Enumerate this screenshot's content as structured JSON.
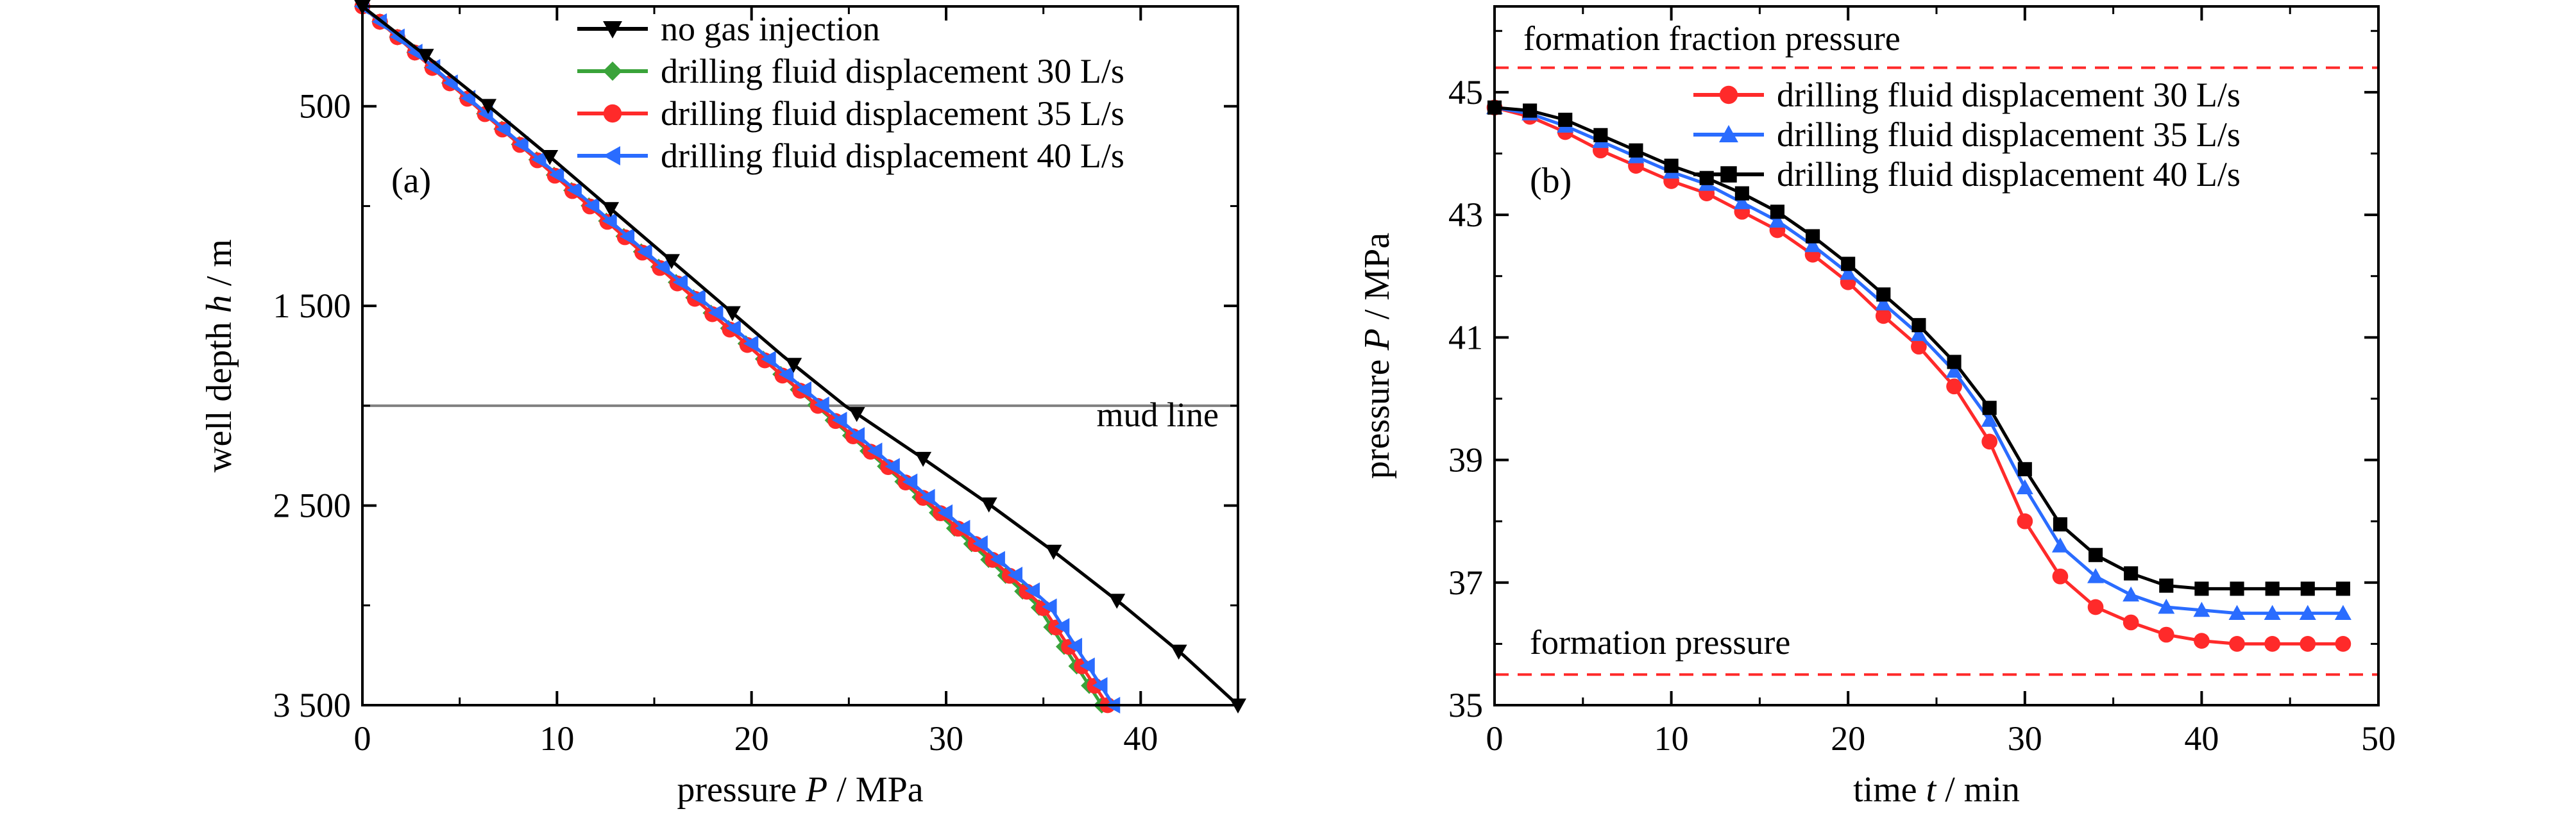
{
  "chart_data": [
    {
      "panel_label": "(a)",
      "type": "line",
      "x_axis": {
        "label_prefix": "pressure ",
        "label_var": "P",
        "label_unit": " / MPa",
        "range": [
          0,
          45
        ],
        "ticks": [
          0,
          10,
          20,
          30,
          40
        ],
        "tick_labels": [
          "0",
          "10",
          "20",
          "30",
          "40"
        ]
      },
      "y_axis": {
        "label_prefix": "well depth ",
        "label_var": "h",
        "label_unit": " / m",
        "range": [
          0,
          3500
        ],
        "inverted": true,
        "ticks": [
          500,
          1500,
          2500,
          3500
        ],
        "tick_labels": [
          "500",
          "1 500",
          "2 500",
          "3 500"
        ],
        "minor_ticks": [
          1000,
          2000,
          3000
        ]
      },
      "reference_lines": [
        {
          "label": "mud line",
          "y": 2000,
          "color": "#808080"
        }
      ],
      "legend_position": "top-right",
      "series": [
        {
          "name": "no gas injection",
          "color": "#000000",
          "marker": "triangle-down",
          "points": [
            [
              0,
              0
            ],
            [
              3.3,
              250
            ],
            [
              6.5,
              500
            ],
            [
              9.6,
              750
            ],
            [
              12.6,
              1000
            ],
            [
              15.6,
              1250
            ],
            [
              18.6,
              1500
            ],
            [
              21.6,
              1750
            ],
            [
              24.8,
              2000
            ],
            [
              28.6,
              2250
            ],
            [
              32.3,
              2500
            ],
            [
              35.8,
              2750
            ],
            [
              39.1,
              3000
            ],
            [
              42.2,
              3250
            ],
            [
              45,
              3500
            ]
          ]
        },
        {
          "name": "drilling fluid displacement 30 L/s",
          "color": "#3aa33a",
          "marker": "diamond",
          "points": [
            [
              0,
              0
            ],
            [
              3.5,
              300
            ],
            [
              7,
              600
            ],
            [
              10.5,
              900
            ],
            [
              14,
              1200
            ],
            [
              17.5,
              1500
            ],
            [
              21,
              1800
            ],
            [
              24.5,
              2100
            ],
            [
              28,
              2400
            ],
            [
              31.4,
              2700
            ],
            [
              34.7,
              3000
            ],
            [
              38,
              3500
            ]
          ]
        },
        {
          "name": "drilling fluid displacement 35 L/s",
          "color": "#ff2a2a",
          "marker": "circle",
          "points": [
            [
              0,
              0
            ],
            [
              3.5,
              300
            ],
            [
              7,
              600
            ],
            [
              10.5,
              900
            ],
            [
              14,
              1200
            ],
            [
              17.5,
              1500
            ],
            [
              21,
              1800
            ],
            [
              24.6,
              2100
            ],
            [
              28.1,
              2400
            ],
            [
              31.6,
              2700
            ],
            [
              34.9,
              3000
            ],
            [
              38.3,
              3500
            ]
          ]
        },
        {
          "name": "drilling fluid displacement 40 L/s",
          "color": "#2a6cff",
          "marker": "triangle-left",
          "points": [
            [
              0,
              0
            ],
            [
              3.6,
              300
            ],
            [
              7.1,
              600
            ],
            [
              10.7,
              900
            ],
            [
              14.2,
              1200
            ],
            [
              17.8,
              1500
            ],
            [
              21.3,
              1800
            ],
            [
              24.9,
              2100
            ],
            [
              28.4,
              2400
            ],
            [
              31.9,
              2700
            ],
            [
              35.3,
              3000
            ],
            [
              38.6,
              3500
            ]
          ]
        }
      ]
    },
    {
      "panel_label": "(b)",
      "type": "line",
      "x_axis": {
        "label_prefix": "time  ",
        "label_var": "t",
        "label_unit": " / min",
        "range": [
          0,
          50
        ],
        "ticks": [
          0,
          10,
          20,
          30,
          40,
          50
        ],
        "tick_labels": [
          "0",
          "10",
          "20",
          "30",
          "40",
          "50"
        ]
      },
      "y_axis": {
        "label_prefix": "pressure ",
        "label_var": "P",
        "label_unit": " / MPa",
        "range": [
          35,
          46.4
        ],
        "ticks": [
          35,
          37,
          39,
          41,
          43,
          45
        ],
        "tick_labels": [
          "35",
          "37",
          "39",
          "41",
          "43",
          "45"
        ],
        "minor_ticks": [
          36,
          38,
          40,
          42,
          44,
          46
        ]
      },
      "reference_lines": [
        {
          "label": "formation fraction pressure",
          "y": 45.4,
          "color": "#ff2a2a",
          "style": "dashed"
        },
        {
          "label": "formation pressure",
          "y": 35.5,
          "color": "#ff2a2a",
          "style": "dashed"
        }
      ],
      "legend_position": "top-right",
      "series": [
        {
          "name": "drilling fluid displacement 30 L/s",
          "color": "#ff2a2a",
          "marker": "circle",
          "points": [
            [
              0,
              44.75
            ],
            [
              2,
              44.6
            ],
            [
              4,
              44.35
            ],
            [
              6,
              44.05
            ],
            [
              8,
              43.8
            ],
            [
              10,
              43.55
            ],
            [
              12,
              43.35
            ],
            [
              14,
              43.05
            ],
            [
              16,
              42.75
            ],
            [
              18,
              42.35
            ],
            [
              20,
              41.9
            ],
            [
              22,
              41.35
            ],
            [
              24,
              40.85
            ],
            [
              26,
              40.2
            ],
            [
              28,
              39.3
            ],
            [
              30,
              38.0
            ],
            [
              32,
              37.1
            ],
            [
              34,
              36.6
            ],
            [
              36,
              36.35
            ],
            [
              38,
              36.15
            ],
            [
              40,
              36.05
            ],
            [
              42,
              36.0
            ],
            [
              44,
              36.0
            ],
            [
              46,
              36.0
            ],
            [
              48,
              36.0
            ]
          ]
        },
        {
          "name": "drilling fluid displacement 35 L/s",
          "color": "#2a6cff",
          "marker": "triangle-up",
          "points": [
            [
              0,
              44.75
            ],
            [
              2,
              44.65
            ],
            [
              4,
              44.45
            ],
            [
              6,
              44.2
            ],
            [
              8,
              43.95
            ],
            [
              10,
              43.7
            ],
            [
              12,
              43.5
            ],
            [
              14,
              43.2
            ],
            [
              16,
              42.9
            ],
            [
              18,
              42.5
            ],
            [
              20,
              42.05
            ],
            [
              22,
              41.55
            ],
            [
              24,
              41.05
            ],
            [
              26,
              40.45
            ],
            [
              28,
              39.65
            ],
            [
              30,
              38.55
            ],
            [
              32,
              37.6
            ],
            [
              34,
              37.1
            ],
            [
              36,
              36.8
            ],
            [
              38,
              36.6
            ],
            [
              40,
              36.55
            ],
            [
              42,
              36.5
            ],
            [
              44,
              36.5
            ],
            [
              46,
              36.5
            ],
            [
              48,
              36.5
            ]
          ]
        },
        {
          "name": "drilling fluid displacement 40 L/s",
          "color": "#000000",
          "marker": "square",
          "points": [
            [
              0,
              44.75
            ],
            [
              2,
              44.7
            ],
            [
              4,
              44.55
            ],
            [
              6,
              44.3
            ],
            [
              8,
              44.05
            ],
            [
              10,
              43.8
            ],
            [
              12,
              43.6
            ],
            [
              14,
              43.35
            ],
            [
              16,
              43.05
            ],
            [
              18,
              42.65
            ],
            [
              20,
              42.2
            ],
            [
              22,
              41.7
            ],
            [
              24,
              41.2
            ],
            [
              26,
              40.6
            ],
            [
              28,
              39.85
            ],
            [
              30,
              38.85
            ],
            [
              32,
              37.95
            ],
            [
              34,
              37.45
            ],
            [
              36,
              37.15
            ],
            [
              38,
              36.95
            ],
            [
              40,
              36.9
            ],
            [
              42,
              36.9
            ],
            [
              44,
              36.9
            ],
            [
              46,
              36.9
            ],
            [
              48,
              36.9
            ]
          ]
        }
      ]
    }
  ]
}
